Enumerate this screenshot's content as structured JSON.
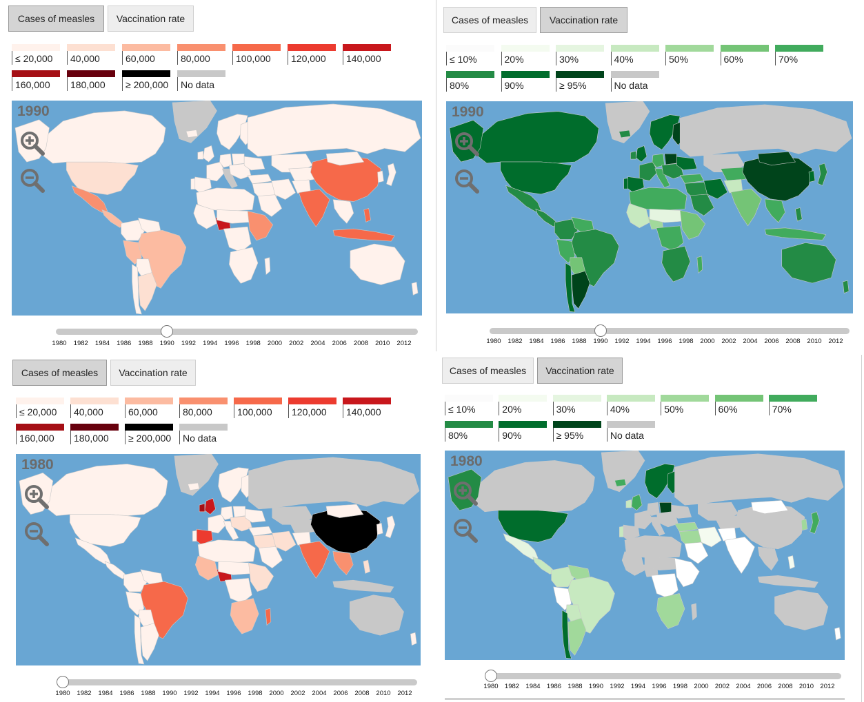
{
  "tabs": {
    "measles": "Cases of measles",
    "vaccination": "Vaccination rate"
  },
  "measles_legend": [
    {
      "label": "≤ 20,000",
      "color": "#fff2ec"
    },
    {
      "label": "40,000",
      "color": "#fde0d2"
    },
    {
      "label": "60,000",
      "color": "#fcbba1"
    },
    {
      "label": "80,000",
      "color": "#f9906f"
    },
    {
      "label": "100,000",
      "color": "#f6694a"
    },
    {
      "label": "120,000",
      "color": "#ec3b2f"
    },
    {
      "label": "140,000",
      "color": "#c8171c"
    },
    {
      "label": "160,000",
      "color": "#a50f15"
    },
    {
      "label": "180,000",
      "color": "#67000d"
    },
    {
      "label": "≥ 200,000",
      "color": "#000000"
    },
    {
      "label": "No data",
      "color": "#c8c8c8"
    }
  ],
  "vaccination_legend": [
    {
      "label": "≤ 10%",
      "color": "#ffffff"
    },
    {
      "label": "20%",
      "color": "#f4fbf0"
    },
    {
      "label": "30%",
      "color": "#e5f5e0"
    },
    {
      "label": "40%",
      "color": "#c7e9c0"
    },
    {
      "label": "50%",
      "color": "#a1d99b"
    },
    {
      "label": "60%",
      "color": "#74c476"
    },
    {
      "label": "70%",
      "color": "#41ab5d"
    },
    {
      "label": "80%",
      "color": "#238b45"
    },
    {
      "label": "90%",
      "color": "#006d2c"
    },
    {
      "label": "≥ 95%",
      "color": "#00441b"
    },
    {
      "label": "No data",
      "color": "#c8c8c8"
    }
  ],
  "years": [
    "1980",
    "1982",
    "1984",
    "1986",
    "1988",
    "1990",
    "1992",
    "1994",
    "1996",
    "1998",
    "2000",
    "2002",
    "2004",
    "2006",
    "2008",
    "2010",
    "2012"
  ],
  "panels": {
    "top_left": {
      "year": "1990",
      "slider_value": 1990,
      "view": "measles"
    },
    "top_right": {
      "year": "1990",
      "slider_value": 1990,
      "view": "vaccination"
    },
    "bottom_left": {
      "year": "1980",
      "slider_value": 1980,
      "view": "measles"
    },
    "bottom_right": {
      "year": "1980",
      "slider_value": 1980,
      "view": "vaccination"
    }
  },
  "map_colors": {
    "ocean": "#69a6d3",
    "nodata": "#c8c8c8"
  },
  "icons": {
    "zoom_in": "zoom-in-icon",
    "zoom_out": "zoom-out-icon"
  }
}
